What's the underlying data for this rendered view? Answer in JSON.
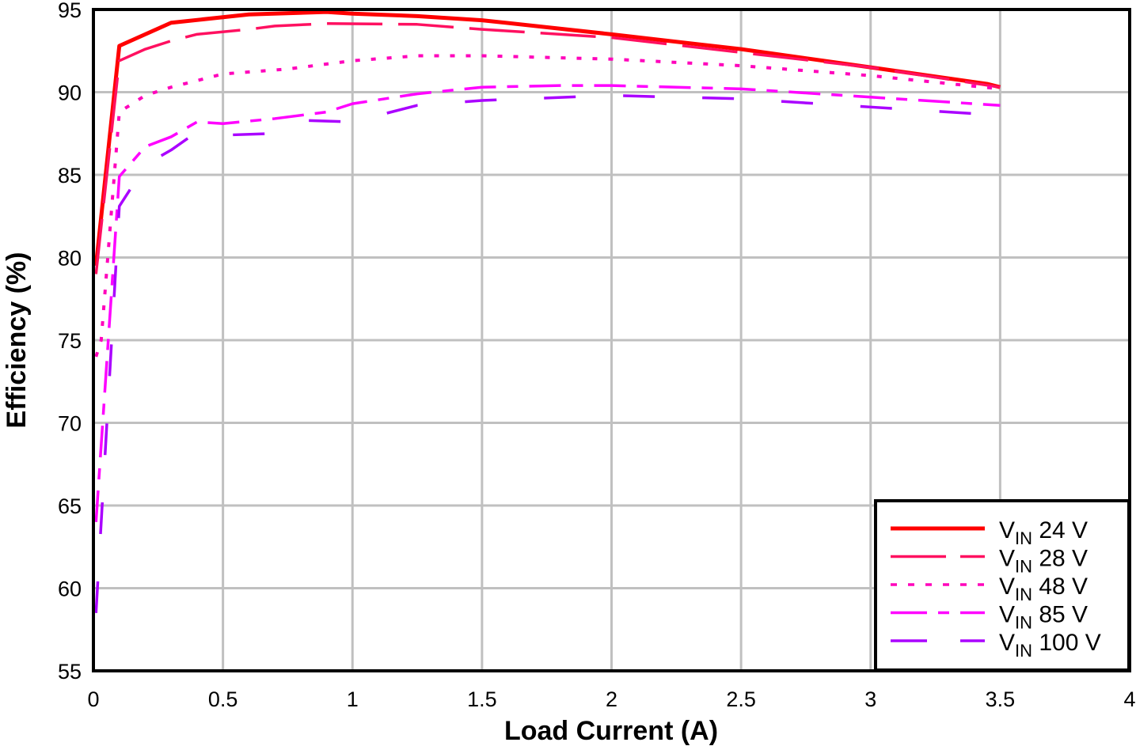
{
  "chart_data": {
    "type": "line",
    "title": "",
    "xlabel": "Load Current (A)",
    "ylabel": "Efficiency (%)",
    "xlim": [
      0,
      4
    ],
    "ylim": [
      55,
      95
    ],
    "xticks": [
      "0",
      "0.5",
      "1",
      "1.5",
      "2",
      "2.5",
      "3",
      "3.5",
      "4"
    ],
    "yticks": [
      "55",
      "60",
      "65",
      "70",
      "75",
      "80",
      "85",
      "90",
      "95"
    ],
    "grid": true,
    "legend_position": "bottom-right",
    "series": [
      {
        "name": "VIN 24 V",
        "name_main": "V",
        "name_sub": "IN",
        "name_rest": " 24 V",
        "color": "#ff0000",
        "dash": "solid",
        "x": [
          0.01,
          0.1,
          0.3,
          0.6,
          0.9,
          1.0,
          1.25,
          1.5,
          2.0,
          2.5,
          3.0,
          3.45,
          3.5
        ],
        "y": [
          79.5,
          92.8,
          94.2,
          94.7,
          94.85,
          94.75,
          94.6,
          94.35,
          93.5,
          92.6,
          91.5,
          90.5,
          90.3
        ]
      },
      {
        "name": "VIN 28 V",
        "name_main": "V",
        "name_sub": "IN",
        "name_rest": " 28 V",
        "color": "#ff1060",
        "dash": "long-dash",
        "x": [
          0.01,
          0.1,
          0.2,
          0.3,
          0.4,
          0.6,
          0.7,
          0.9,
          1.25,
          1.5,
          2.0,
          2.5,
          3.0,
          3.5
        ],
        "y": [
          79.0,
          91.9,
          92.6,
          93.1,
          93.5,
          93.8,
          94.0,
          94.15,
          94.1,
          93.8,
          93.3,
          92.4,
          91.5,
          90.3
        ]
      },
      {
        "name": "VIN 48 V",
        "name_main": "V",
        "name_sub": "IN",
        "name_rest": " 48 V",
        "color": "#ff00bb",
        "dash": "dot",
        "x": [
          0.01,
          0.03,
          0.1,
          0.2,
          0.3,
          0.5,
          0.75,
          1.0,
          1.25,
          1.5,
          2.0,
          2.5,
          3.0,
          3.5
        ],
        "y": [
          74.0,
          75.0,
          88.8,
          89.8,
          90.3,
          91.1,
          91.4,
          91.9,
          92.2,
          92.2,
          92.0,
          91.6,
          91.0,
          90.2
        ]
      },
      {
        "name": "VIN 85 V",
        "name_main": "V",
        "name_sub": "IN",
        "name_rest": " 85 V",
        "color": "#ff00ff",
        "dash": "dash-dot",
        "x": [
          0.01,
          0.1,
          0.2,
          0.3,
          0.4,
          0.5,
          0.7,
          0.9,
          1.0,
          1.25,
          1.5,
          1.8,
          2.0,
          2.5,
          3.0,
          3.5
        ],
        "y": [
          64.0,
          84.9,
          86.7,
          87.3,
          88.2,
          88.1,
          88.4,
          88.8,
          89.3,
          89.9,
          90.3,
          90.4,
          90.4,
          90.2,
          89.7,
          89.2
        ]
      },
      {
        "name": "VIN 100 V",
        "name_main": "V",
        "name_sub": "IN",
        "name_rest": " 100 V",
        "color": "#aa00ff",
        "dash": "sparse-dash",
        "x": [
          0.01,
          0.1,
          0.17,
          0.2,
          0.3,
          0.4,
          0.5,
          0.7,
          0.8,
          1.0,
          1.25,
          1.5,
          2.0,
          2.5,
          3.0,
          3.5
        ],
        "y": [
          58.5,
          83.1,
          84.8,
          85.6,
          86.5,
          87.6,
          87.4,
          87.5,
          88.3,
          88.2,
          89.2,
          89.5,
          89.8,
          89.6,
          89.1,
          88.6
        ]
      }
    ]
  }
}
